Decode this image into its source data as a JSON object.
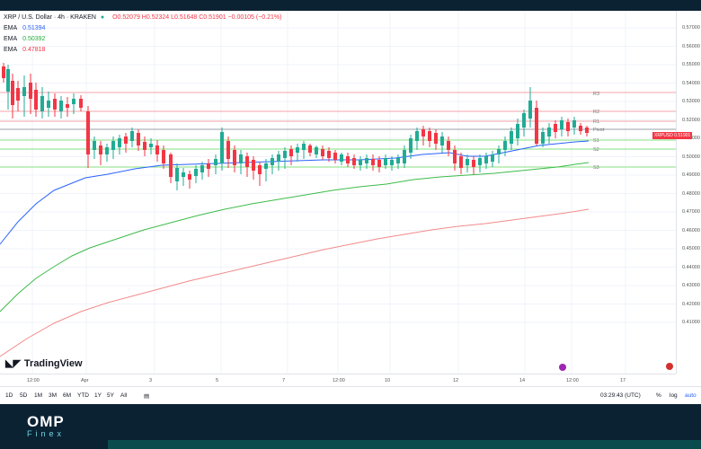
{
  "header": {
    "symbol": "XRP / U.S. Dollar · 4h · KRAKEN",
    "ohlc": "O0.52079 H0.52324 L0.51648 C0.51901 −0.00105 (−0.21%)"
  },
  "emas": [
    {
      "label": "EMA",
      "value": "0.51394",
      "color": "#2962ff"
    },
    {
      "label": "EMA",
      "value": "0.50392",
      "color": "#22ab3a"
    },
    {
      "label": "EMA",
      "value": "0.47818",
      "color": "#f23645"
    }
  ],
  "price_tag": {
    "label": "XRPUSD",
    "value": "0.51901"
  },
  "pivot_labels": [
    "R3",
    "R2",
    "R1",
    "Pivot",
    "S1",
    "S2",
    "S3"
  ],
  "price_axis_labels": [
    "0.57000",
    "0.56000",
    "0.55000",
    "0.54000",
    "0.53000",
    "0.52000",
    "0.51000",
    "0.50000",
    "0.49000",
    "0.48000",
    "0.47000",
    "0.46000",
    "0.45000",
    "0.44000",
    "0.43000",
    "0.42000",
    "0.41000"
  ],
  "time_axis_labels": [
    "12:00",
    "Apr",
    "3",
    "5",
    "7",
    "12:00",
    "10",
    "12",
    "14",
    "12:00",
    "17"
  ],
  "toolbar": {
    "ranges": [
      "1D",
      "5D",
      "1M",
      "3M",
      "6M",
      "YTD",
      "1Y",
      "5Y",
      "All"
    ],
    "time": "03:29:43 (UTC)",
    "percent": "%",
    "log": "log",
    "auto": "auto"
  },
  "brand": {
    "tradingview": "TradingView",
    "omp": "OMP",
    "finex": "Finex"
  }
}
